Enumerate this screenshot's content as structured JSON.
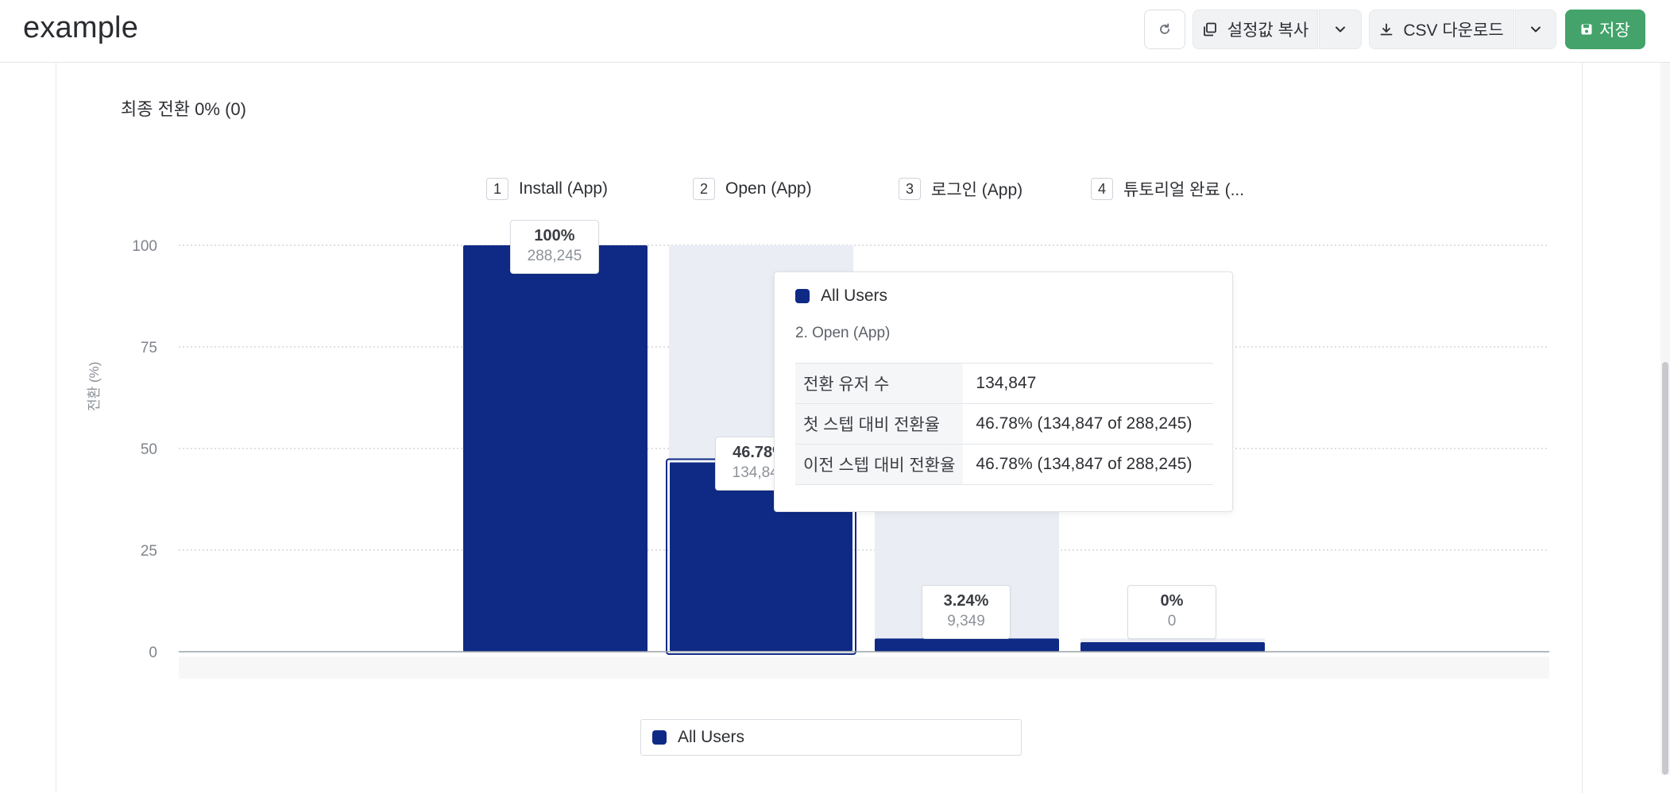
{
  "app": {
    "title": "example"
  },
  "toolbar": {
    "refresh_icon": "refresh-icon",
    "copy_label": "설정값 복사",
    "copy_icon": "copy-icon",
    "csv_label": "CSV 다운로드",
    "csv_icon": "download-icon",
    "save_label": "저장",
    "save_icon": "floppy-disk-icon",
    "save_color": "#43a36b"
  },
  "summary": {
    "final_conversion": "최종 전환 0% (0)"
  },
  "steps": [
    {
      "num": "1",
      "label": "Install (App)"
    },
    {
      "num": "2",
      "label": "Open (App)"
    },
    {
      "num": "3",
      "label": "로그인 (App)"
    },
    {
      "num": "4",
      "label": "튜토리얼 완료 (..."
    }
  ],
  "chart_data": {
    "type": "bar",
    "ylabel": "전환 (%)",
    "ylim": [
      0,
      100
    ],
    "yticks": [
      "100",
      "75",
      "50",
      "25",
      "0"
    ],
    "grid": true,
    "categories": [
      "Install (App)",
      "Open (App)",
      "로그인 (App)",
      "튜토리얼 완료 (..."
    ],
    "series": [
      {
        "name": "All Users",
        "values": [
          100,
          46.78,
          3.24,
          0
        ],
        "color": "#0f2a85"
      }
    ],
    "dropoff_color": "#eaedf4",
    "labels": [
      {
        "pct": "100%",
        "count": "288,245"
      },
      {
        "pct": "46.78%",
        "count": "134,847"
      },
      {
        "pct": "3.24%",
        "count": "9,349"
      },
      {
        "pct": "0%",
        "count": "0"
      }
    ],
    "legend": "bottom"
  },
  "tooltip": {
    "series": "All Users",
    "step": "2. Open (App)",
    "rows": [
      {
        "key": "전환 유저 수",
        "value": "134,847"
      },
      {
        "key": "첫 스텝 대비 전환율",
        "value": "46.78% (134,847 of 288,245)"
      },
      {
        "key": "이전 스텝 대비 전환율",
        "value": "46.78% (134,847 of 288,245)"
      }
    ]
  },
  "legend": {
    "label": "All Users"
  }
}
